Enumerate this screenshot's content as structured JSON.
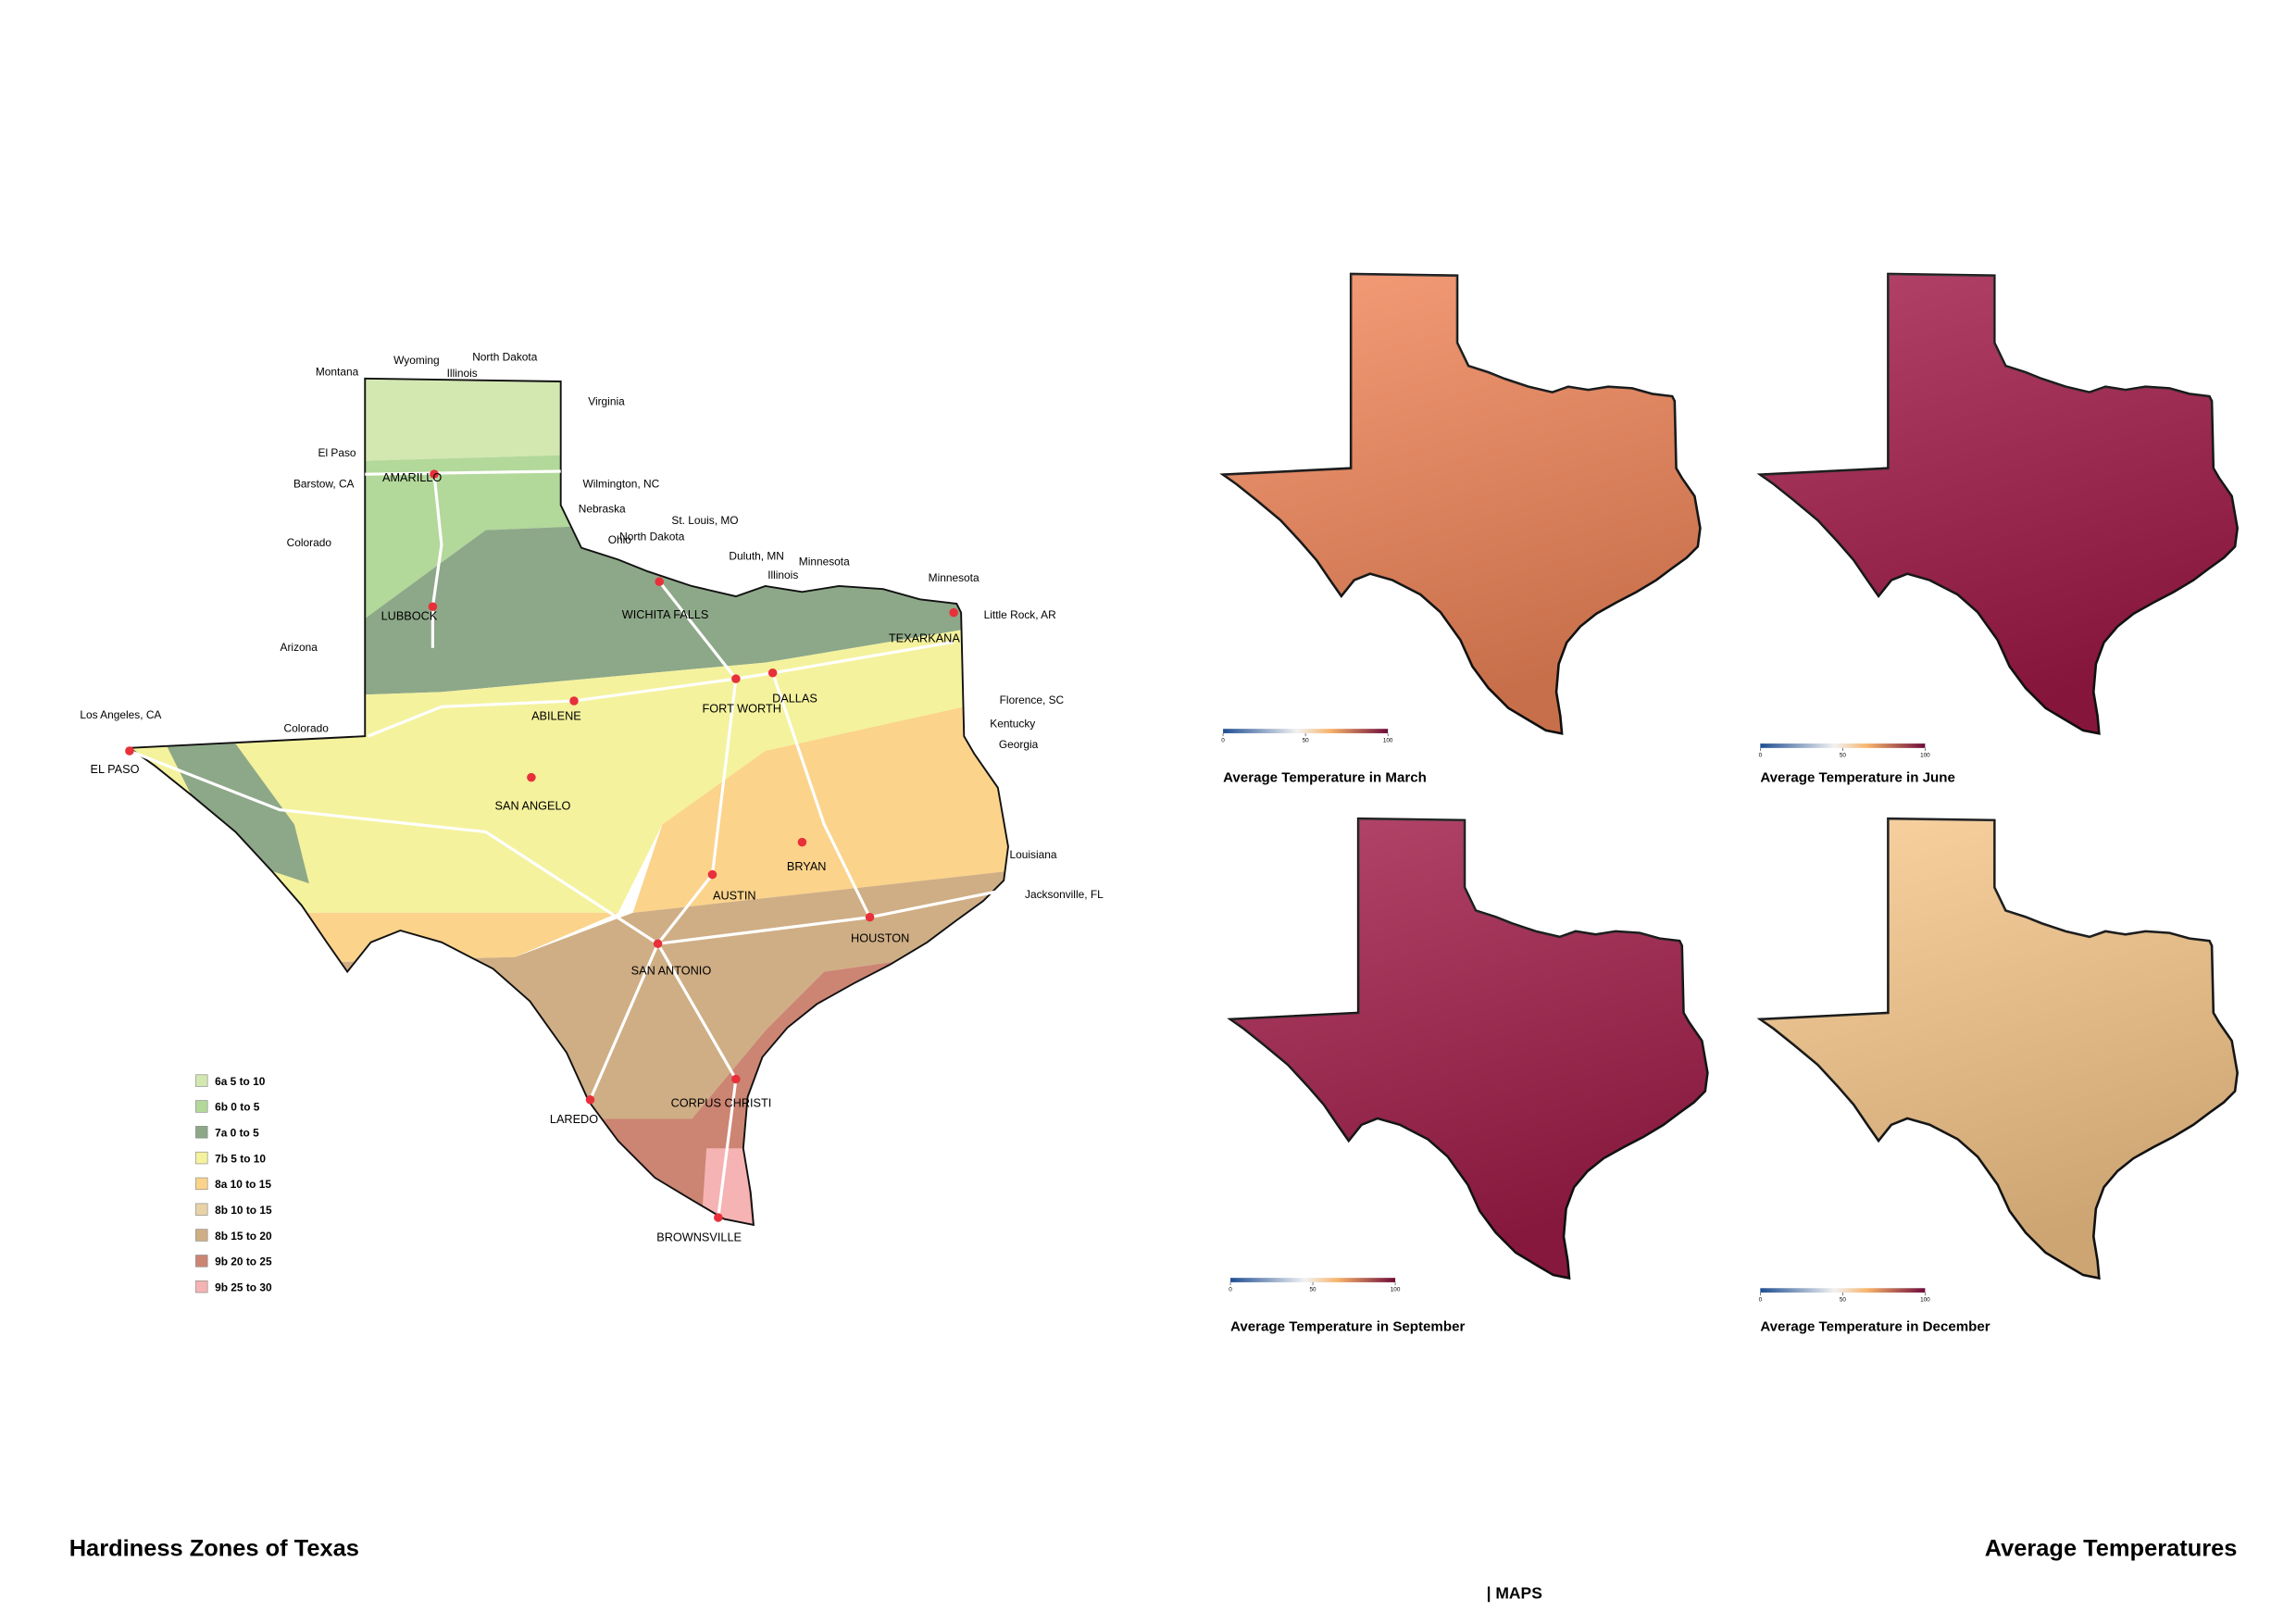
{
  "hardiness_map": {
    "title": "Hardiness Zones of Texas",
    "cities": [
      "AMARILLO",
      "LUBBOCK",
      "WICHITA FALLS",
      "ABILENE",
      "FORT WORTH",
      "DALLAS",
      "TEXARKANA",
      "EL PASO",
      "SAN ANGELO",
      "BRYAN",
      "AUSTIN",
      "HOUSTON",
      "SAN ANTONIO",
      "LAREDO",
      "CORPUS CHRISTI",
      "BROWNSVILLE"
    ],
    "context_labels": [
      "Montana",
      "Wyoming",
      "Illinois",
      "North Dakota",
      "Virginia",
      "El Paso",
      "Barstow, CA",
      "Wilmington, NC",
      "Nebraska",
      "St. Louis, MO",
      "Colorado",
      "Ohio",
      "North Dakota",
      "Duluth, MN",
      "Minnesota",
      "Illinois",
      "Minnesota",
      "Little Rock, AR",
      "Arizona",
      "Florence, SC",
      "Los Angeles, CA",
      "Colorado",
      "Kentucky",
      "Georgia",
      "Louisiana",
      "Jacksonville, FL"
    ],
    "legend": [
      {
        "name": "6a 5 to 10",
        "color": "#d3e7b1"
      },
      {
        "name": "6b 0 to 5",
        "color": "#b2d89a"
      },
      {
        "name": "7a 0 to 5",
        "color": "#8da888"
      },
      {
        "name": "7b 5 to 10",
        "color": "#f4f29d"
      },
      {
        "name": "8a 10 to 15",
        "color": "#fbd38b"
      },
      {
        "name": "8b 10 to 15",
        "color": "#e8d3a8"
      },
      {
        "name": "8b 15 to 20",
        "color": "#cfae85"
      },
      {
        "name": "9b 20 to 25",
        "color": "#cc8473"
      },
      {
        "name": "9b 25 to 30",
        "color": "#f6b3b3"
      }
    ]
  },
  "temperature_maps": {
    "title": "Average Temperatures",
    "colorbar": {
      "lim": [
        0,
        100
      ],
      "ticks": [
        0,
        50,
        100
      ]
    },
    "maps": [
      {
        "title": "Average Temperature in March",
        "color": "#f3875a"
      },
      {
        "title": "Average Temperature in June",
        "color": "#a31a48"
      },
      {
        "title": "Average Temperature in September",
        "color": "#a41d4a"
      },
      {
        "title": "Average Temperature in December",
        "color": "#f9c98c"
      }
    ]
  },
  "footer": "| MAPS"
}
